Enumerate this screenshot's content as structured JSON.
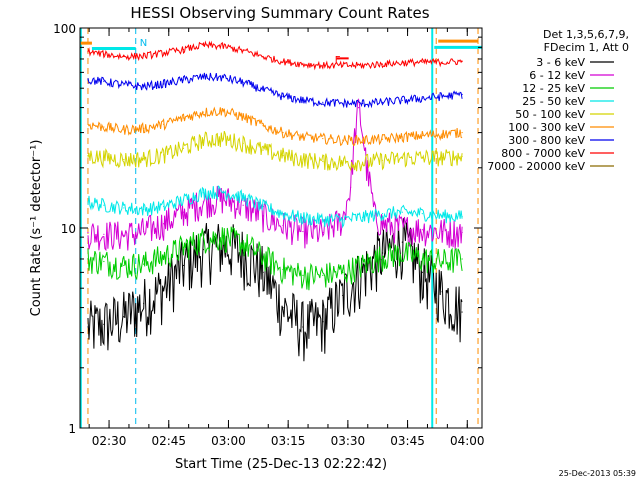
{
  "chart_data": {
    "type": "line",
    "title": "HESSI Observing Summary Count Rates",
    "xlabel": "Start Time (25-Dec-13 02:22:42)",
    "ylabel": "Count Rate (s⁻¹ detector⁻¹)",
    "yscale": "log",
    "ylim": [
      1,
      100
    ],
    "xlim_minutes_after_0222": [
      0,
      101
    ],
    "x_ticks": [
      "02:30",
      "02:45",
      "03:00",
      "03:15",
      "03:30",
      "03:45",
      "04:00"
    ],
    "y_ticks": [
      "1",
      "10",
      "100"
    ],
    "legend": {
      "header": [
        "Det 1,3,5,6,7,9,",
        "FDecim 1, Att 0"
      ],
      "position": "right"
    },
    "series": [
      {
        "name": "3 - 6 keV",
        "color": "#000000",
        "x": [
          2,
          6,
          11,
          16,
          21,
          26,
          31,
          36,
          41,
          46,
          51,
          56,
          61,
          66,
          71,
          76,
          81,
          86,
          91,
          96
        ],
        "values": [
          3.2,
          3.3,
          3.6,
          4.2,
          5.0,
          6.5,
          7.8,
          8.2,
          7.5,
          6.0,
          4.0,
          3.2,
          3.4,
          4.6,
          6.0,
          7.5,
          8.5,
          6.0,
          4.8,
          3.8
        ]
      },
      {
        "name": "6 - 12 keV",
        "color": "#d400d4",
        "x": [
          2,
          6,
          11,
          16,
          21,
          26,
          31,
          36,
          41,
          46,
          51,
          56,
          61,
          66,
          68,
          70,
          72,
          74,
          76,
          80,
          86,
          91,
          96
        ],
        "values": [
          9.5,
          9.3,
          9.2,
          9.6,
          10.5,
          12.0,
          13.5,
          14.0,
          13.0,
          11.5,
          10.3,
          9.6,
          9.5,
          11.0,
          16.0,
          40.0,
          20.0,
          11.5,
          10.5,
          10.0,
          9.8,
          9.6,
          9.5
        ]
      },
      {
        "name": "12 - 25 keV",
        "color": "#00cc00",
        "x": [
          2,
          6,
          11,
          16,
          21,
          26,
          31,
          36,
          41,
          46,
          51,
          56,
          61,
          66,
          71,
          76,
          81,
          86,
          91,
          96
        ],
        "values": [
          7.0,
          6.8,
          6.5,
          6.6,
          7.2,
          8.0,
          8.8,
          9.0,
          8.4,
          7.2,
          6.2,
          5.8,
          5.8,
          6.0,
          6.5,
          7.2,
          7.5,
          7.0,
          6.8,
          7.0
        ]
      },
      {
        "name": "25 - 50 keV",
        "color": "#00e8e8",
        "x": [
          2,
          6,
          11,
          16,
          21,
          26,
          31,
          36,
          41,
          46,
          51,
          56,
          61,
          66,
          71,
          76,
          81,
          86,
          91,
          96
        ],
        "values": [
          13.5,
          13.0,
          12.6,
          12.4,
          12.8,
          13.8,
          15.0,
          15.2,
          14.2,
          12.8,
          11.8,
          11.2,
          11.0,
          11.0,
          11.3,
          11.8,
          12.0,
          11.8,
          11.5,
          11.4
        ]
      },
      {
        "name": "50 - 100 keV",
        "color": "#d4d400",
        "x": [
          2,
          6,
          11,
          16,
          21,
          26,
          31,
          36,
          41,
          46,
          51,
          56,
          61,
          66,
          71,
          76,
          81,
          86,
          91,
          96
        ],
        "values": [
          23.0,
          22.5,
          22.0,
          22.2,
          23.2,
          25.0,
          27.5,
          28.0,
          26.5,
          24.5,
          23.0,
          22.0,
          21.5,
          21.3,
          21.3,
          21.8,
          22.3,
          22.5,
          22.5,
          22.8
        ]
      },
      {
        "name": "100 - 300 keV",
        "color": "#ff8c00",
        "x": [
          2,
          6,
          11,
          16,
          21,
          26,
          31,
          36,
          41,
          46,
          51,
          56,
          61,
          66,
          71,
          76,
          81,
          86,
          91,
          96
        ],
        "values": [
          33.0,
          32.0,
          31.0,
          31.5,
          33.0,
          35.5,
          38.0,
          38.5,
          36.0,
          32.5,
          30.0,
          28.5,
          28.0,
          27.5,
          27.5,
          27.8,
          28.5,
          29.0,
          29.5,
          30.0
        ]
      },
      {
        "name": "300 - 800 keV",
        "color": "#0000ee",
        "x": [
          2,
          6,
          11,
          16,
          21,
          26,
          31,
          36,
          41,
          46,
          51,
          56,
          61,
          66,
          71,
          76,
          81,
          86,
          91,
          96
        ],
        "values": [
          55.0,
          54.0,
          52.0,
          51.0,
          52.5,
          55.0,
          57.0,
          56.5,
          53.5,
          49.0,
          45.5,
          43.5,
          42.5,
          42.0,
          42.0,
          42.5,
          43.5,
          44.5,
          45.5,
          46.5
        ]
      },
      {
        "name": "800 - 7000 keV",
        "color": "#ff0000",
        "x": [
          2,
          6,
          11,
          16,
          21,
          26,
          31,
          36,
          41,
          46,
          51,
          56,
          61,
          66,
          71,
          76,
          81,
          86,
          91,
          96
        ],
        "values": [
          76.0,
          74.0,
          72.0,
          72.5,
          75.0,
          78.0,
          82.0,
          81.0,
          77.0,
          72.0,
          68.0,
          66.0,
          65.0,
          65.0,
          65.0,
          66.0,
          67.0,
          67.5,
          67.5,
          68.0
        ]
      },
      {
        "name": "7000 - 20000 keV",
        "color": "#8b6a00",
        "x": [],
        "values": []
      }
    ],
    "annotations": [
      {
        "label": "N",
        "color": "#00bbee",
        "x": 14,
        "y": 85
      },
      {
        "label": "F",
        "color": "#ff0000",
        "x": 63,
        "y": 70
      }
    ],
    "vertical_markers": [
      {
        "x": 0.2,
        "color": "#00e8e8",
        "style": "solid"
      },
      {
        "x": 2,
        "color": "#ff8c00",
        "style": "dashed"
      },
      {
        "x": 14,
        "color": "#00bbee",
        "style": "dashed"
      },
      {
        "x": 88.5,
        "color": "#00e8e8",
        "style": "solid"
      },
      {
        "x": 89.5,
        "color": "#ff8c00",
        "style": "dashed"
      },
      {
        "x": 100,
        "color": "#ff8c00",
        "style": "dashed"
      }
    ],
    "grid": false
  },
  "footer": {
    "timestamp": "25-Dec-2013 05:39"
  }
}
